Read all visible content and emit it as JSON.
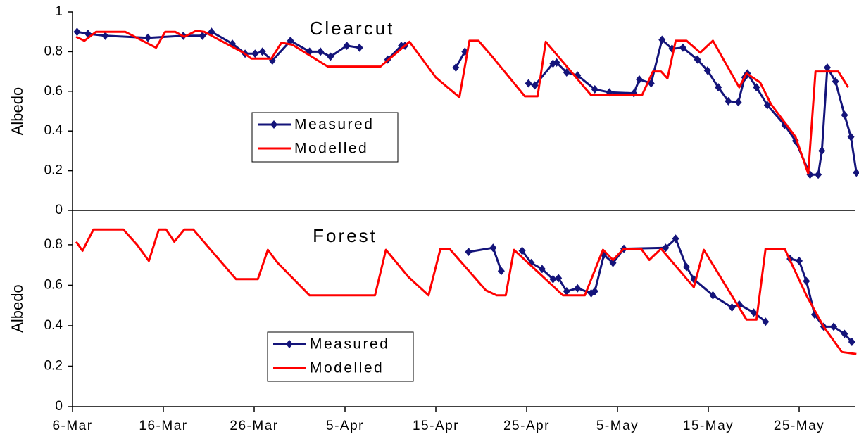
{
  "chart_data": [
    {
      "type": "line",
      "title": "Clearcut",
      "ylabel": "Albedo",
      "ylim": [
        0,
        1
      ],
      "yticks": [
        0,
        0.2,
        0.4,
        0.6,
        0.8,
        1
      ],
      "xlim": [
        0,
        86.2
      ],
      "series": [
        {
          "name": "Measured",
          "color": "#14147a",
          "marker": "diamond",
          "x": [
            0.5,
            1.7,
            3.6,
            8.3,
            12.2,
            14.3,
            15.3,
            17.6,
            19,
            20.1,
            20.9,
            22,
            24,
            26.1,
            27.3,
            28.4,
            30.2,
            31.6,
            null,
            34.7,
            36.2,
            36.6,
            null,
            42.2,
            43.2,
            null,
            50.2,
            50.9,
            52.9,
            53.3,
            54.4,
            55.6,
            57.5,
            59.1,
            61.8,
            62.4,
            63.7,
            64.9,
            66,
            67.2,
            68.8,
            69.9,
            71.1,
            72.2,
            73.3,
            74,
            74.3,
            75.3,
            76.5,
            78.4,
            79.6,
            81.2,
            82.1,
            82.5,
            83.1,
            84,
            85,
            85.7,
            86.3
          ],
          "values": [
            0.9,
            0.89,
            0.88,
            0.87,
            0.88,
            0.88,
            0.9,
            0.84,
            0.79,
            0.79,
            0.8,
            0.755,
            0.855,
            0.8,
            0.8,
            0.775,
            0.83,
            0.82,
            null,
            0.76,
            0.83,
            0.83,
            null,
            0.72,
            0.8,
            null,
            0.64,
            0.63,
            0.74,
            0.745,
            0.695,
            0.68,
            0.61,
            0.595,
            0.59,
            0.66,
            0.64,
            0.86,
            0.815,
            0.82,
            0.76,
            0.705,
            0.62,
            0.55,
            0.545,
            0.67,
            0.69,
            0.62,
            0.53,
            0.43,
            0.35,
            0.18,
            0.18,
            0.3,
            0.72,
            0.65,
            0.48,
            0.37,
            0.19
          ]
        },
        {
          "name": "Modelled",
          "color": "#ff0000",
          "x": [
            0.4,
            1.3,
            2.6,
            5.8,
            9.2,
            10.2,
            11.3,
            12.3,
            13.6,
            14.5,
            18.8,
            19.7,
            21.9,
            23,
            24.2,
            28.1,
            33.9,
            37.1,
            40,
            42.6,
            43.7,
            44.7,
            46.3,
            49.8,
            51.2,
            52.1,
            57.1,
            62.7,
            63.9,
            64.8,
            65.5,
            66.4,
            67.6,
            69.1,
            70.5,
            73.4,
            74.2,
            75.7,
            76.9,
            79.6,
            81,
            81.8,
            84.3,
            85.4
          ],
          "values": [
            0.875,
            0.855,
            0.9,
            0.9,
            0.82,
            0.9,
            0.9,
            0.875,
            0.905,
            0.9,
            0.795,
            0.765,
            0.765,
            0.845,
            0.835,
            0.725,
            0.725,
            0.85,
            0.67,
            0.57,
            0.855,
            0.855,
            0.77,
            0.575,
            0.575,
            0.85,
            0.58,
            0.58,
            0.7,
            0.7,
            0.665,
            0.855,
            0.855,
            0.795,
            0.855,
            0.62,
            0.69,
            0.645,
            0.535,
            0.37,
            0.185,
            0.7,
            0.7,
            0.62
          ]
        }
      ]
    },
    {
      "type": "line",
      "title": "Forest",
      "ylabel": "Albedo",
      "ylim": [
        0,
        0.97
      ],
      "yticks": [
        0,
        0.2,
        0.4,
        0.6,
        0.8
      ],
      "xlim": [
        0,
        86.2
      ],
      "xticks": [
        {
          "value": 0,
          "label": "6-Mar"
        },
        {
          "value": 10,
          "label": "16-Mar"
        },
        {
          "value": 20,
          "label": "26-Mar"
        },
        {
          "value": 30,
          "label": "5-Apr"
        },
        {
          "value": 40,
          "label": "15-Apr"
        },
        {
          "value": 50,
          "label": "25-Apr"
        },
        {
          "value": 60,
          "label": "5-May"
        },
        {
          "value": 70,
          "label": "15-May"
        },
        {
          "value": 80,
          "label": "25-May"
        }
      ],
      "series": [
        {
          "name": "Measured",
          "color": "#14147a",
          "marker": "diamond",
          "x": [
            43.6,
            46.3,
            47.2,
            null,
            49.5,
            50.5,
            51.7,
            52.9,
            53.5,
            54.4,
            55.6,
            57.1,
            57.5,
            58.5,
            59.5,
            60.7,
            65.3,
            66.4,
            67.6,
            68.4,
            70.5,
            72.6,
            73.4,
            75,
            76.3,
            null,
            79,
            80,
            80.8,
            81.7,
            82.7,
            83.8,
            85,
            85.8
          ],
          "values": [
            0.765,
            0.785,
            0.67,
            null,
            0.77,
            0.71,
            0.68,
            0.63,
            0.635,
            0.57,
            0.585,
            0.56,
            0.57,
            0.75,
            0.71,
            0.78,
            0.785,
            0.83,
            0.69,
            0.63,
            0.55,
            0.49,
            0.505,
            0.465,
            0.42,
            null,
            0.73,
            0.72,
            0.62,
            0.455,
            0.395,
            0.395,
            0.36,
            0.32
          ]
        },
        {
          "name": "Modelled",
          "color": "#ff0000",
          "x": [
            0.4,
            1.1,
            2.3,
            5.6,
            7.1,
            8.4,
            9.5,
            10.3,
            11.2,
            12.3,
            13.3,
            15.3,
            18,
            20.4,
            21.5,
            22.6,
            26.1,
            33.3,
            34.5,
            37,
            39.2,
            40.5,
            41.5,
            45.5,
            46.7,
            47.7,
            48.6,
            54,
            56.4,
            58.4,
            59.5,
            60.7,
            62.6,
            63.5,
            64.8,
            68.4,
            69.5,
            74.2,
            75.3,
            76.3,
            78.4,
            80.8,
            82.7,
            84.7,
            86.3
          ],
          "values": [
            0.815,
            0.77,
            0.875,
            0.875,
            0.8,
            0.72,
            0.875,
            0.875,
            0.815,
            0.875,
            0.875,
            0.77,
            0.63,
            0.63,
            0.775,
            0.71,
            0.55,
            0.55,
            0.775,
            0.64,
            0.55,
            0.78,
            0.78,
            0.575,
            0.55,
            0.55,
            0.775,
            0.55,
            0.55,
            0.775,
            0.725,
            0.78,
            0.78,
            0.725,
            0.78,
            0.59,
            0.775,
            0.43,
            0.43,
            0.78,
            0.78,
            0.55,
            0.395,
            0.27,
            0.26
          ]
        }
      ]
    }
  ]
}
